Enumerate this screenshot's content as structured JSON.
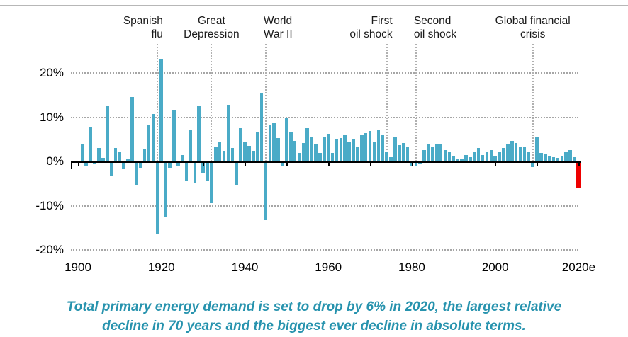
{
  "chart_data": {
    "type": "bar",
    "title": "",
    "xlabel": "",
    "ylabel": "",
    "ylim": [
      -20,
      25
    ],
    "grid": "dotted-horizontal",
    "unit": "%",
    "start_year": 1901,
    "values": [
      4.0,
      -1.0,
      7.7,
      -0.7,
      3.0,
      0.8,
      12.5,
      -3.3,
      3.0,
      2.2,
      -1.6,
      0.5,
      14.5,
      -5.5,
      -1.5,
      2.8,
      8.4,
      10.7,
      -16.5,
      23.2,
      -12.5,
      -1.5,
      11.5,
      -1.0,
      1.5,
      -4.3,
      7.0,
      -5.0,
      12.5,
      -2.5,
      -4.3,
      -9.5,
      3.3,
      4.5,
      2.4,
      12.8,
      3.0,
      -5.3,
      7.5,
      4.5,
      3.5,
      2.4,
      6.8,
      15.5,
      -13.3,
      8.3,
      8.6,
      5.3,
      -1.0,
      9.7,
      6.5,
      4.6,
      2.0,
      4.2,
      7.6,
      5.4,
      3.8,
      2.0,
      5.5,
      6.3,
      1.9,
      5.0,
      5.3,
      6.0,
      4.5,
      5.2,
      3.3,
      6.1,
      6.4,
      6.9,
      4.5,
      7.2,
      5.9,
      2.2,
      1.0,
      5.5,
      3.7,
      4.2,
      3.2,
      -1.1,
      -1.0,
      -0.5,
      2.5,
      3.8,
      3.2,
      4.0,
      3.8,
      2.5,
      2.2,
      1.1,
      0.5,
      0.5,
      1.4,
      1.0,
      2.2,
      3.0,
      1.5,
      2.3,
      2.5,
      1.2,
      2.2,
      3.0,
      3.8,
      4.6,
      4.1,
      3.3,
      3.4,
      2.2,
      -1.3,
      5.5,
      1.9,
      1.6,
      1.3,
      1.0,
      0.8,
      1.3,
      2.3,
      2.6,
      1.0,
      -6.0
    ],
    "bar_color": "#4aabc7",
    "highlight_year": 2020,
    "highlight_value": -6.0,
    "highlight_color": "#ee0000",
    "y_ticks": [
      {
        "label": "20%",
        "value": 20
      },
      {
        "label": "10%",
        "value": 10
      },
      {
        "label": "0%",
        "value": 0
      },
      {
        "label": "-10%",
        "value": -10
      },
      {
        "label": "-20%",
        "value": -20
      }
    ],
    "x_ticks": [
      {
        "label": "1900",
        "year": 1900
      },
      {
        "label": "1920",
        "year": 1920
      },
      {
        "label": "1940",
        "year": 1940
      },
      {
        "label": "1960",
        "year": 1960
      },
      {
        "label": "1980",
        "year": 1980
      },
      {
        "label": "2000",
        "year": 2000
      },
      {
        "label": "2020e",
        "year": 2020
      }
    ],
    "annotations": [
      {
        "line1": "Spanish",
        "line2": "flu",
        "year": 1919,
        "align": "right",
        "line_bottom": 296
      },
      {
        "line1": "Great",
        "line2": "Depression",
        "year": 1932,
        "align": "center",
        "line_bottom": 228
      },
      {
        "line1": "World",
        "line2": "War II",
        "year": 1945,
        "align": "left",
        "line_bottom": 228
      },
      {
        "line1": "First",
        "line2": "oil shock",
        "year": 1974,
        "align": "right",
        "line_bottom": 228
      },
      {
        "line1": "Second",
        "line2": "oil shock",
        "year": 1981,
        "align": "left",
        "line_bottom": 228
      },
      {
        "line1": "Global financial",
        "line2": "crisis",
        "year": 2009,
        "align": "center",
        "line_bottom": 228
      }
    ]
  },
  "caption": {
    "line1": "Total primary energy demand is set to drop by 6% in 2020, the largest relative",
    "line2": "decline in 70 years and the biggest ever decline in absolute terms.",
    "color": "#2793ae"
  }
}
